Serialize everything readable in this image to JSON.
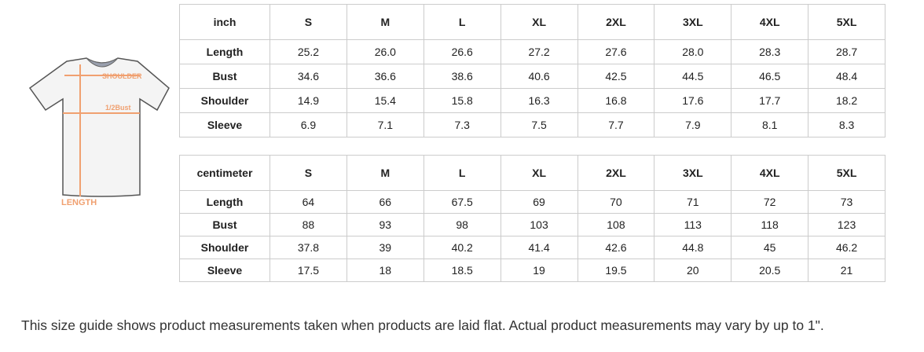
{
  "diagram": {
    "shoulder": "SHOULDER",
    "bust": "1/2Bust",
    "length": "LENGTH"
  },
  "tables": [
    {
      "header": [
        "inch",
        "S",
        "M",
        "L",
        "XL",
        "2XL",
        "3XL",
        "4XL",
        "5XL"
      ],
      "rows": [
        [
          "Length",
          "25.2",
          "26.0",
          "26.6",
          "27.2",
          "27.6",
          "28.0",
          "28.3",
          "28.7"
        ],
        [
          "Bust",
          "34.6",
          "36.6",
          "38.6",
          "40.6",
          "42.5",
          "44.5",
          "46.5",
          "48.4"
        ],
        [
          "Shoulder",
          "14.9",
          "15.4",
          "15.8",
          "16.3",
          "16.8",
          "17.6",
          "17.7",
          "18.2"
        ],
        [
          "Sleeve",
          "6.9",
          "7.1",
          "7.3",
          "7.5",
          "7.7",
          "7.9",
          "8.1",
          "8.3"
        ]
      ]
    },
    {
      "header": [
        "centimeter",
        "S",
        "M",
        "L",
        "XL",
        "2XL",
        "3XL",
        "4XL",
        "5XL"
      ],
      "rows": [
        [
          "Length",
          "64",
          "66",
          "67.5",
          "69",
          "70",
          "71",
          "72",
          "73"
        ],
        [
          "Bust",
          "88",
          "93",
          "98",
          "103",
          "108",
          "113",
          "118",
          "123"
        ],
        [
          "Shoulder",
          "37.8",
          "39",
          "40.2",
          "41.4",
          "42.6",
          "44.8",
          "45",
          "46.2"
        ],
        [
          "Sleeve",
          "17.5",
          "18",
          "18.5",
          "19",
          "19.5",
          "20",
          "20.5",
          "21"
        ]
      ]
    }
  ],
  "note": "This size guide shows product measurements taken when products are laid flat. Actual product measurements may vary by up to 1\"."
}
